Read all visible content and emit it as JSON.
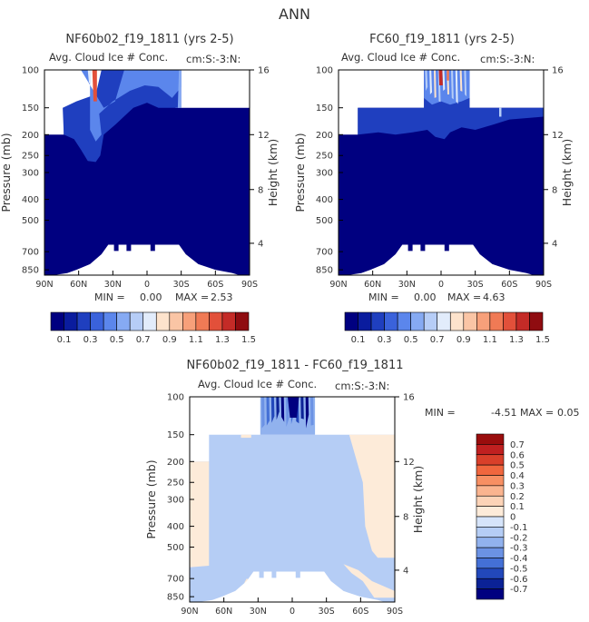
{
  "figure": {
    "suptitle": "ANN"
  },
  "chart_data": [
    {
      "type": "heatmap",
      "title": "NF60b02_f19_1811 (yrs 2-5)",
      "subtitle_left": "Avg. Cloud Ice # Conc.",
      "subtitle_right": "cm:S:-3:N:",
      "xlabel": "",
      "ylabel": "Pressure (mb)",
      "ylabel_right": "Height (km)",
      "x_ticks": [
        "90N",
        "60N",
        "30N",
        "0",
        "30S",
        "60S",
        "90S"
      ],
      "y_ticks": [
        "100",
        "150",
        "200",
        "250",
        "300",
        "400",
        "500",
        "700",
        "850"
      ],
      "y_ticks_right": [
        "16",
        "12",
        "8",
        "4"
      ],
      "xlim": [
        90,
        -90
      ],
      "ylim": [
        100,
        900
      ],
      "min_label": "MIN =",
      "min_value": "0.00",
      "max_label": "MAX =",
      "max_value": "2.53",
      "colorbar_labels": [
        "0.1",
        "0.3",
        "0.5",
        "0.7",
        "0.9",
        "1.1",
        "1.3",
        "1.5"
      ]
    },
    {
      "type": "heatmap",
      "title": "FC60_f19_1811 (yrs 2-5)",
      "subtitle_left": "Avg. Cloud Ice # Conc.",
      "subtitle_right": "cm:S:-3:N:",
      "xlabel": "",
      "ylabel": "Pressure (mb)",
      "ylabel_right": "Height (km)",
      "x_ticks": [
        "90N",
        "60N",
        "30N",
        "0",
        "30S",
        "60S",
        "90S"
      ],
      "y_ticks": [
        "100",
        "150",
        "200",
        "250",
        "300",
        "400",
        "500",
        "700",
        "850"
      ],
      "y_ticks_right": [
        "16",
        "12",
        "8",
        "4"
      ],
      "xlim": [
        90,
        -90
      ],
      "ylim": [
        100,
        900
      ],
      "min_label": "MIN =",
      "min_value": "0.00",
      "max_label": "MAX =",
      "max_value": "4.63",
      "colorbar_labels": [
        "0.1",
        "0.3",
        "0.5",
        "0.7",
        "0.9",
        "1.1",
        "1.3",
        "1.5"
      ]
    },
    {
      "type": "heatmap",
      "title": "NF60b02_f19_1811 - FC60_f19_1811",
      "subtitle_left": "Avg. Cloud Ice # Conc.",
      "subtitle_right": "cm:S:-3:N:",
      "xlabel": "",
      "ylabel": "Pressure (mb)",
      "ylabel_right": "Height (km)",
      "x_ticks": [
        "90N",
        "60N",
        "30N",
        "0",
        "30S",
        "60S",
        "90S"
      ],
      "y_ticks": [
        "100",
        "150",
        "200",
        "250",
        "300",
        "400",
        "500",
        "700",
        "850"
      ],
      "y_ticks_right": [
        "16",
        "12",
        "8",
        "4"
      ],
      "xlim": [
        90,
        -90
      ],
      "ylim": [
        100,
        900
      ],
      "min_label": "MIN =",
      "min_value": "-4.51",
      "max_label": "MAX =",
      "max_value": "0.05",
      "colorbar_labels": [
        "0.7",
        "0.6",
        "0.5",
        "0.4",
        "0.3",
        "0.2",
        "0.1",
        "0",
        "-0.1",
        "-0.2",
        "-0.3",
        "-0.4",
        "-0.5",
        "-0.6",
        "-0.7"
      ]
    }
  ],
  "colors": {
    "seq_palette": [
      "#000080",
      "#0a1c9e",
      "#1f3fbf",
      "#3a62db",
      "#5b86ec",
      "#86aaf3",
      "#b6cdf7",
      "#e2ecfb",
      "#fde3cc",
      "#fac5a5",
      "#f7a07a",
      "#f07a55",
      "#e2503a",
      "#c42b27",
      "#8f0c10"
    ],
    "diff_palette": [
      "#9a0d0d",
      "#c02020",
      "#d93f2a",
      "#f0663e",
      "#f78f63",
      "#fab48f",
      "#fcd3b7",
      "#fdebd9",
      "#d6e4fa",
      "#b5cdf5",
      "#91b2ee",
      "#6b92e4",
      "#4470d6",
      "#2248bb",
      "#0b2296",
      "#000080"
    ]
  }
}
